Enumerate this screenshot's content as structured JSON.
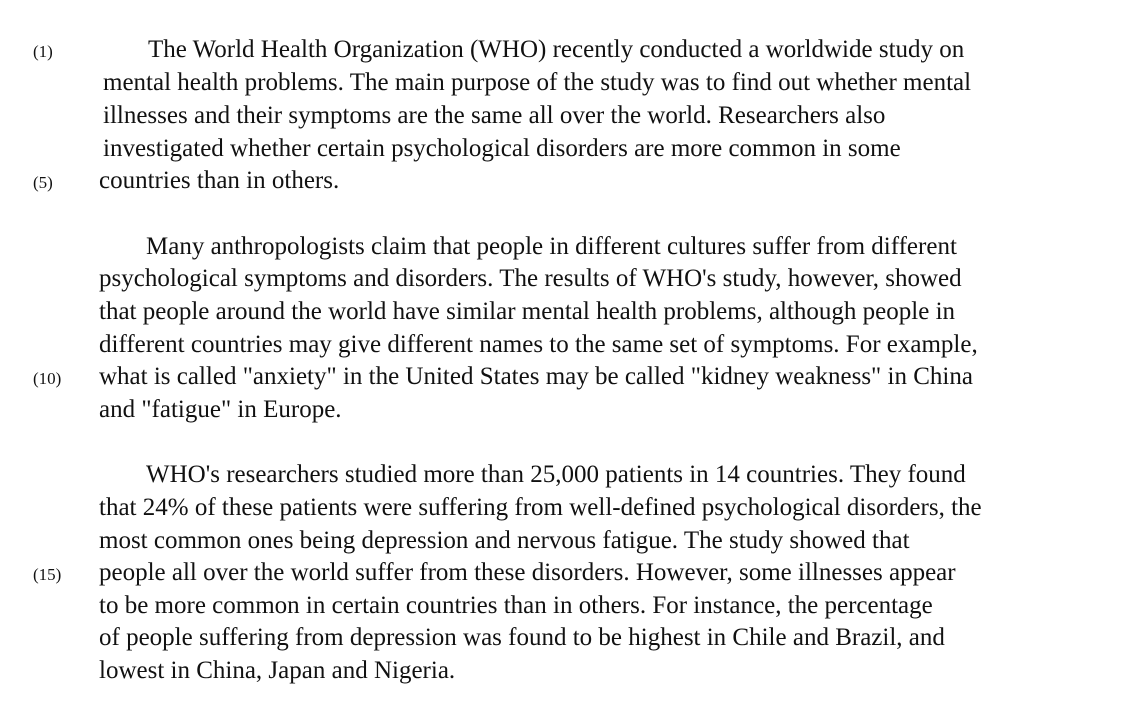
{
  "line_numbers": [
    "(1)",
    "(5)",
    "(10)",
    "(15)"
  ],
  "paragraphs": [
    {
      "lines": [
        "The World Health Organization (WHO) recently conducted a worldwide study on",
        "mental health problems.  The main purpose of the study was to find out whether mental",
        "illnesses and their symptoms are the same all over the world.  Researchers also",
        "investigated whether certain psychological disorders are more common in some",
        "countries than in others."
      ]
    },
    {
      "lines": [
        "Many anthropologists claim that people in different cultures suffer from different",
        "psychological symptoms and disorders.  The results of WHO's study, however, showed",
        "that people around the world have similar mental health problems, although people in",
        "different countries may give different names to the same set of symptoms.  For example,",
        "what is called \"anxiety\" in the United States may be called \"kidney weakness\" in China",
        "and \"fatigue\" in Europe."
      ]
    },
    {
      "lines": [
        "WHO's researchers studied more than 25,000 patients in 14 countries.  They found",
        "that 24% of these patients were suffering from well-defined psychological disorders, the",
        "most common ones being depression and nervous fatigue.  The study showed that",
        "people all over the world suffer from these disorders.  However, some illnesses appear",
        "to be more common in certain countries than in others.  For instance, the percentage",
        "of people suffering from depression was found to be highest in Chile and Brazil, and",
        "lowest in China, Japan and Nigeria."
      ]
    }
  ]
}
